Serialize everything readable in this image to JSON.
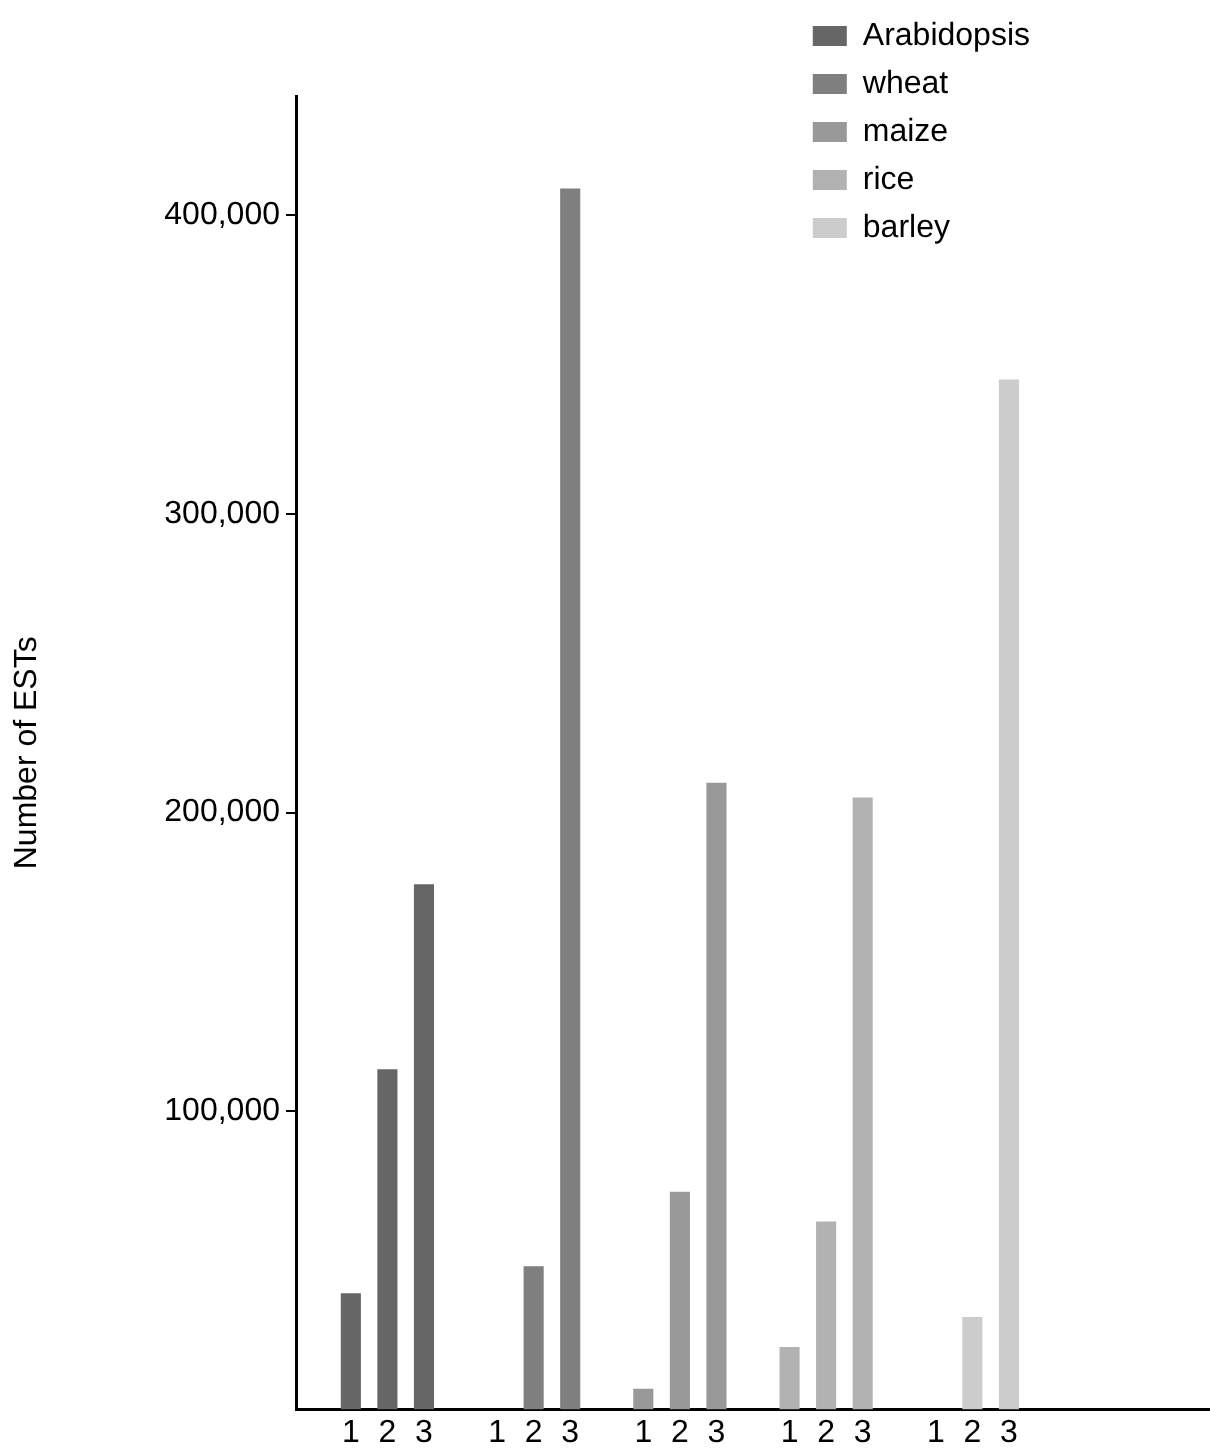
{
  "chart_data": {
    "type": "bar",
    "ylabel": "Number of ESTs",
    "stacked": true,
    "legend": "top right",
    "categories": [
      null,
      "1",
      "2",
      "3",
      null,
      "1",
      "2",
      "3",
      null,
      "1",
      "2",
      "3",
      null,
      "1",
      "2",
      "3",
      null,
      "1",
      "2",
      "3",
      null,
      null,
      null,
      null,
      null
    ],
    "series": [
      {
        "name": "Arabidopsis",
        "color": "#666666",
        "values": [
          null,
          39000,
          114000,
          176000,
          null,
          null,
          null,
          null,
          null,
          null,
          null,
          null,
          null,
          null,
          null,
          null,
          null,
          null,
          null,
          null,
          null,
          null,
          null,
          null,
          null
        ]
      },
      {
        "name": "wheat",
        "color": "#7f7f7f",
        "values": [
          null,
          null,
          null,
          null,
          null,
          null,
          48000,
          409000,
          null,
          null,
          null,
          null,
          null,
          null,
          null,
          null,
          null,
          null,
          null,
          null,
          null,
          null,
          null,
          null,
          null
        ]
      },
      {
        "name": "maize",
        "color": "#999999",
        "values": [
          null,
          null,
          null,
          null,
          null,
          null,
          null,
          null,
          null,
          7000,
          73000,
          210000,
          null,
          null,
          null,
          null,
          null,
          null,
          null,
          null,
          null,
          null,
          null,
          null,
          null
        ]
      },
      {
        "name": "rice",
        "color": "#b2b2b2",
        "values": [
          null,
          null,
          null,
          null,
          null,
          null,
          null,
          null,
          null,
          null,
          null,
          null,
          null,
          21000,
          63000,
          205000,
          null,
          null,
          null,
          null,
          null,
          null,
          null,
          null,
          null
        ]
      },
      {
        "name": "barley",
        "color": "#cccccc",
        "values": [
          null,
          null,
          null,
          null,
          null,
          null,
          null,
          null,
          null,
          null,
          null,
          null,
          null,
          null,
          null,
          null,
          null,
          null,
          31000,
          345000,
          null,
          null,
          null,
          null,
          null
        ]
      }
    ],
    "ylim": [
      0,
      440000
    ],
    "yticks": [
      {
        "value": 100000,
        "label": "100,000"
      },
      {
        "value": 200000,
        "label": "200,000"
      },
      {
        "value": 300000,
        "label": "300,000"
      },
      {
        "value": 400000,
        "label": "400,000"
      }
    ]
  }
}
